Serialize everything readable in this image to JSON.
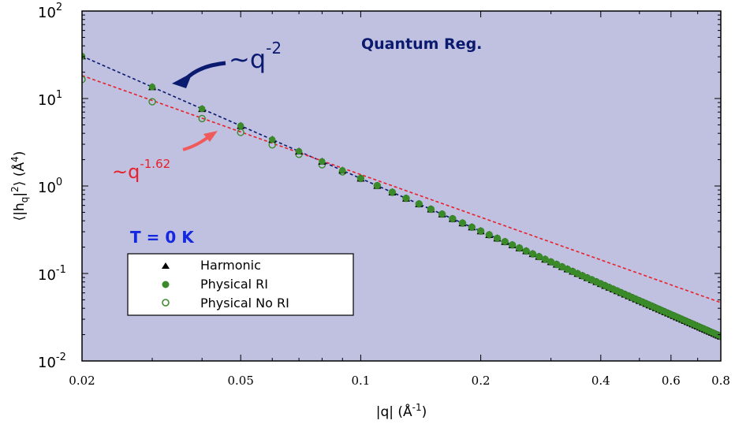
{
  "chart_data": {
    "type": "scatter",
    "xscale": "log",
    "yscale": "log",
    "xlim": [
      0.02,
      0.8
    ],
    "ylim": [
      0.01,
      100
    ],
    "xlabel": "|q| (Å",
    "xlabel_sup": "-1",
    "xlabel_end": ")",
    "ylabel": "⟨|h",
    "ylabel_sub": "q",
    "ylabel_mid": "|",
    "ylabel_sup": "2",
    "ylabel_mid2": "⟩ (Å",
    "ylabel_sup2": "4",
    "ylabel_end": ")",
    "x_ticks": [
      {
        "value": 0.02,
        "label": "0.02"
      },
      {
        "value": 0.05,
        "label": "0.05"
      },
      {
        "value": 0.1,
        "label": "0.1"
      },
      {
        "value": 0.2,
        "label": "0.2"
      },
      {
        "value": 0.4,
        "label": "0.4"
      },
      {
        "value": 0.6,
        "label": "0.6"
      },
      {
        "value": 0.8,
        "label": "0.8"
      }
    ],
    "y_ticks": [
      {
        "value": 0.01,
        "base": "10",
        "exp": "-2"
      },
      {
        "value": 0.1,
        "base": "10",
        "exp": "-1"
      },
      {
        "value": 1,
        "base": "10",
        "exp": "0"
      },
      {
        "value": 10,
        "base": "10",
        "exp": "1"
      },
      {
        "value": 100,
        "base": "10",
        "exp": "2"
      }
    ],
    "background": "#c0c0e0",
    "series": [
      {
        "name": "Harmonic",
        "marker": "triangle",
        "color": "#000000"
      },
      {
        "name": "Physical RI",
        "marker": "filled-circle",
        "color": "#3a8a2a"
      },
      {
        "name": "Physical No RI",
        "marker": "open-circle",
        "color": "#3a8a2a"
      }
    ],
    "q_values": [
      0.02,
      0.03,
      0.04,
      0.05,
      0.06,
      0.07,
      0.08,
      0.09,
      0.1,
      0.11,
      0.12,
      0.13,
      0.14,
      0.15,
      0.16,
      0.17,
      0.18,
      0.19,
      0.2,
      0.21,
      0.22,
      0.23,
      0.24,
      0.25,
      0.26,
      0.27,
      0.28,
      0.29,
      0.3,
      0.31,
      0.32,
      0.33,
      0.34,
      0.35,
      0.36,
      0.37,
      0.38,
      0.39,
      0.4,
      0.41,
      0.42,
      0.43,
      0.44,
      0.45,
      0.46,
      0.47,
      0.48,
      0.49,
      0.5,
      0.51,
      0.52,
      0.53,
      0.54,
      0.55,
      0.56,
      0.57,
      0.58,
      0.59,
      0.6,
      0.61,
      0.62,
      0.63,
      0.64,
      0.65,
      0.66,
      0.67,
      0.68,
      0.69,
      0.7,
      0.71,
      0.72,
      0.73,
      0.74,
      0.75,
      0.76,
      0.77,
      0.78,
      0.79,
      0.8
    ],
    "amplitude": 0.0122,
    "exponent": -2,
    "no_ri_low_q": [
      {
        "q": 0.02,
        "value": 16.5
      },
      {
        "q": 0.03,
        "value": 9.2
      },
      {
        "q": 0.04,
        "value": 5.9
      },
      {
        "q": 0.05,
        "value": 4.1
      },
      {
        "q": 0.06,
        "value": 2.95
      },
      {
        "q": 0.07,
        "value": 2.3
      },
      {
        "q": 0.08,
        "value": 1.75
      },
      {
        "q": 0.09,
        "value": 1.45
      }
    ],
    "fit_lines": [
      {
        "label": "~q",
        "label_sup": "-2",
        "amplitude": 0.0122,
        "exponent": -2.0,
        "color": "#0a1a6e"
      },
      {
        "label": "~q",
        "label_sup": "-1.62",
        "amplitude": 0.0324,
        "exponent": -1.62,
        "color": "#e8202a"
      }
    ],
    "annotations": {
      "regime": "Quantum Reg.",
      "temperature": "T = 0 K"
    },
    "legend_position": "left",
    "grid": false
  }
}
